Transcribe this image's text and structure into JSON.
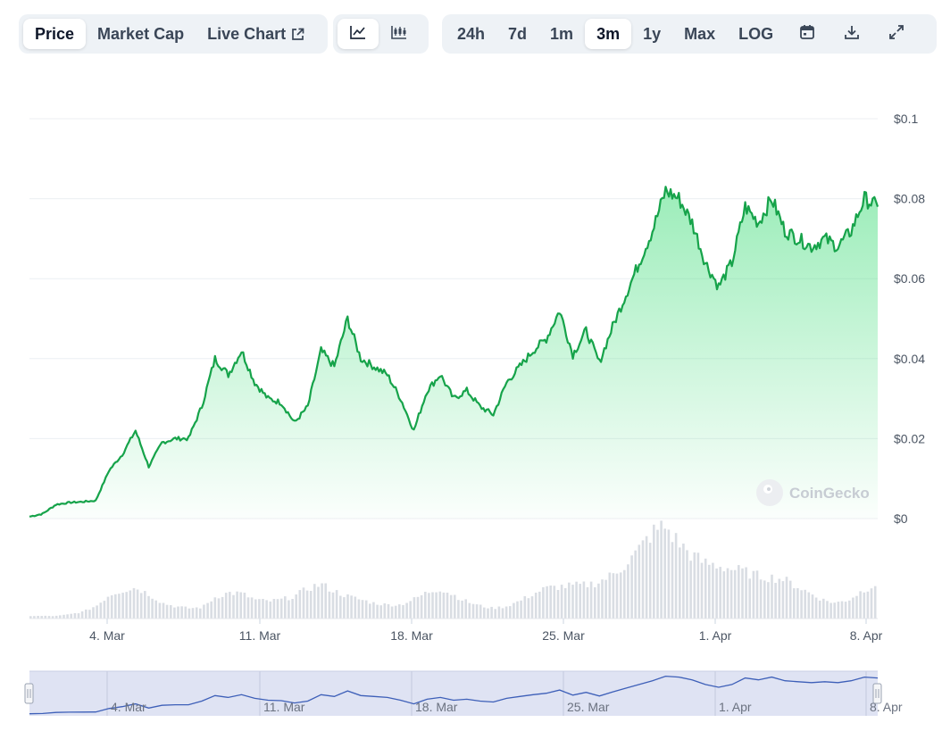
{
  "toolbar": {
    "tabs": [
      {
        "label": "Price",
        "active": true
      },
      {
        "label": "Market Cap",
        "active": false
      },
      {
        "label": "Live Chart",
        "active": false
      }
    ],
    "chart_modes": [
      {
        "icon": "line-chart-icon",
        "active": true
      },
      {
        "icon": "candlestick-icon",
        "active": false
      }
    ],
    "ranges": [
      "24h",
      "7d",
      "1m",
      "3m",
      "1y",
      "Max",
      "LOG"
    ],
    "active_range": "3m",
    "actions": [
      "calendar-icon",
      "download-icon",
      "fullscreen-icon"
    ]
  },
  "watermark": "CoinGecko",
  "colors": {
    "line": "#16a34a",
    "area_top": "#4ade80",
    "volume": "#d9dde3",
    "navigator_bg": "#dfe3f3",
    "navigator_line": "#3d5fb8",
    "grid": "#eceff3"
  },
  "chart_data": {
    "type": "line",
    "y_ticks": [
      "$0",
      "$0.02",
      "$0.04",
      "$0.06",
      "$0.08",
      "$0.1"
    ],
    "ylim": [
      0,
      0.1
    ],
    "x_ticks": [
      "4. Mar",
      "11. Mar",
      "18. Mar",
      "25. Mar",
      "1. Apr",
      "8. Apr"
    ],
    "series": [
      {
        "x": [
          "Feb 28",
          "Feb 29",
          "Mar 1",
          "Mar 2",
          "Mar 3",
          "Mar 4",
          "Mar 5",
          "Mar 5 12h",
          "Mar 6",
          "Mar 6 12h",
          "Mar 7",
          "Mar 8",
          "Mar 9",
          "Mar 10",
          "Mar 10 12h",
          "Mar 11",
          "Mar 11 12h",
          "Mar 12",
          "Mar 13",
          "Mar 14",
          "Mar 14 12h",
          "Mar 15",
          "Mar 16",
          "Mar 16 12h",
          "Mar 17",
          "Mar 17 12h",
          "Mar 18",
          "Mar 18 12h",
          "Mar 19",
          "Mar 19 12h",
          "Mar 20",
          "Mar 21",
          "Mar 21 12h",
          "Mar 22",
          "Mar 22 12h",
          "Mar 23",
          "Mar 24",
          "Mar 24 12h",
          "Mar 25",
          "Mar 26",
          "Mar 27",
          "Mar 27 12h",
          "Mar 28",
          "Mar 28 12h",
          "Mar 29",
          "Mar 29 12h",
          "Mar 30",
          "Mar 30 12h",
          "Mar 31",
          "Mar 31 12h",
          "Apr 1",
          "Apr 1 12h",
          "Apr 2",
          "Apr 2 12h",
          "Apr 3",
          "Apr 3 12h",
          "Apr 4",
          "Apr 4 12h",
          "Apr 5",
          "Apr 6",
          "Apr 6 12h",
          "Apr 7",
          "Apr 7 12h",
          "Apr 8",
          "Apr 8 12h"
        ],
        "values": [
          0.0005,
          0.0012,
          0.0035,
          0.004,
          0.0042,
          0.0045,
          0.012,
          0.016,
          0.022,
          0.013,
          0.019,
          0.02,
          0.02,
          0.028,
          0.04,
          0.036,
          0.042,
          0.034,
          0.03,
          0.029,
          0.024,
          0.028,
          0.042,
          0.038,
          0.05,
          0.04,
          0.038,
          0.036,
          0.03,
          0.022,
          0.032,
          0.036,
          0.03,
          0.032,
          0.028,
          0.026,
          0.034,
          0.038,
          0.042,
          0.045,
          0.052,
          0.041,
          0.047,
          0.039,
          0.048,
          0.056,
          0.064,
          0.072,
          0.082,
          0.08,
          0.074,
          0.064,
          0.058,
          0.064,
          0.078,
          0.074,
          0.08,
          0.072,
          0.07,
          0.068,
          0.07,
          0.068,
          0.072,
          0.08,
          0.078
        ]
      }
    ],
    "volume": [
      0.3,
      0.3,
      0.3,
      0.5,
      0.8,
      1.5,
      2.8,
      3.3,
      3.6,
      2.8,
      1.8,
      1.4,
      1.2,
      1.3,
      2.5,
      3.0,
      2.9,
      2.2,
      2.0,
      2.2,
      2.6,
      3.5,
      4.0,
      3.2,
      2.6,
      2.2,
      1.8,
      1.6,
      1.6,
      2.2,
      3.0,
      3.5,
      2.8,
      2.0,
      1.5,
      1.2,
      1.4,
      2.0,
      2.8,
      3.5,
      3.7,
      3.8,
      3.9,
      4.2,
      5.0,
      6.2,
      7.8,
      9.8,
      10.8,
      9.0,
      7.5,
      6.5,
      6.2,
      5.8,
      5.5,
      5.0,
      4.8,
      4.6,
      3.8,
      3.0,
      2.2,
      1.8,
      2.2,
      3.2,
      4.0
    ]
  }
}
